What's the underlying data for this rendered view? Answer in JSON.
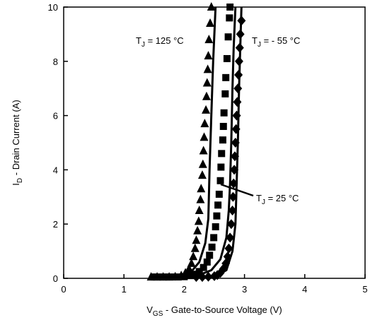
{
  "chart_data": {
    "type": "scatter",
    "title": "",
    "xlabel": {
      "main": "V",
      "sub": "GS",
      "rest": " - Gate-to-Source Voltage (V)"
    },
    "ylabel": {
      "main": "I",
      "sub": "D",
      "rest": " - Drain Current  (A)"
    },
    "xlim": [
      0,
      5
    ],
    "ylim": [
      0,
      10
    ],
    "xticks": [
      "0",
      "1",
      "2",
      "3",
      "4",
      "5"
    ],
    "yticks": [
      "0",
      "2",
      "4",
      "6",
      "8",
      "10"
    ],
    "grid": false,
    "series": [
      {
        "marker": "triangle",
        "annotation": {
          "main": "T",
          "sub": "J",
          "rest": " = 125 °C"
        },
        "points": [
          [
            1.45,
            0.05
          ],
          [
            1.55,
            0.05
          ],
          [
            1.65,
            0.05
          ],
          [
            1.75,
            0.05
          ],
          [
            1.85,
            0.06
          ],
          [
            1.95,
            0.1
          ],
          [
            2.02,
            0.2
          ],
          [
            2.08,
            0.35
          ],
          [
            2.12,
            0.55
          ],
          [
            2.15,
            0.8
          ],
          [
            2.18,
            1.1
          ],
          [
            2.2,
            1.4
          ],
          [
            2.22,
            1.75
          ],
          [
            2.24,
            2.1
          ],
          [
            2.25,
            2.5
          ],
          [
            2.27,
            2.9
          ],
          [
            2.28,
            3.3
          ],
          [
            2.3,
            3.8
          ],
          [
            2.31,
            4.2
          ],
          [
            2.32,
            4.7
          ],
          [
            2.33,
            5.2
          ],
          [
            2.34,
            5.7
          ],
          [
            2.36,
            6.2
          ],
          [
            2.37,
            6.7
          ],
          [
            2.38,
            7.2
          ],
          [
            2.39,
            7.7
          ],
          [
            2.4,
            8.2
          ],
          [
            2.41,
            8.8
          ],
          [
            2.43,
            9.4
          ],
          [
            2.45,
            10.0
          ]
        ],
        "fit": [
          [
            1.45,
            0.02
          ],
          [
            1.9,
            0.05
          ],
          [
            2.1,
            0.2
          ],
          [
            2.25,
            0.6
          ],
          [
            2.35,
            1.3
          ],
          [
            2.4,
            2.2
          ],
          [
            2.42,
            4.0
          ],
          [
            2.45,
            6.0
          ],
          [
            2.48,
            8.0
          ],
          [
            2.52,
            10.0
          ]
        ]
      },
      {
        "marker": "square",
        "annotation": {
          "main": "T",
          "sub": "J",
          "rest": " = 25 °C"
        },
        "points": [
          [
            1.5,
            0.05
          ],
          [
            1.6,
            0.05
          ],
          [
            1.7,
            0.05
          ],
          [
            1.8,
            0.05
          ],
          [
            1.9,
            0.05
          ],
          [
            2.0,
            0.06
          ],
          [
            2.1,
            0.1
          ],
          [
            2.18,
            0.15
          ],
          [
            2.25,
            0.25
          ],
          [
            2.32,
            0.4
          ],
          [
            2.38,
            0.6
          ],
          [
            2.42,
            0.85
          ],
          [
            2.46,
            1.15
          ],
          [
            2.49,
            1.5
          ],
          [
            2.52,
            1.9
          ],
          [
            2.54,
            2.3
          ],
          [
            2.56,
            2.7
          ],
          [
            2.58,
            3.1
          ],
          [
            2.6,
            3.6
          ],
          [
            2.61,
            4.1
          ],
          [
            2.62,
            4.6
          ],
          [
            2.64,
            5.1
          ],
          [
            2.65,
            5.6
          ],
          [
            2.66,
            6.1
          ],
          [
            2.68,
            6.8
          ],
          [
            2.69,
            7.4
          ],
          [
            2.71,
            8.1
          ],
          [
            2.73,
            8.9
          ],
          [
            2.75,
            9.6
          ],
          [
            2.76,
            10.0
          ]
        ],
        "fit": [
          [
            1.5,
            0.02
          ],
          [
            2.2,
            0.08
          ],
          [
            2.45,
            0.3
          ],
          [
            2.6,
            0.7
          ],
          [
            2.7,
            1.5
          ],
          [
            2.74,
            2.5
          ],
          [
            2.76,
            3.5
          ],
          [
            2.78,
            5.0
          ],
          [
            2.8,
            7.0
          ],
          [
            2.82,
            8.5
          ],
          [
            2.85,
            10.0
          ]
        ]
      },
      {
        "marker": "diamond",
        "annotation": {
          "main": "T",
          "sub": "J",
          "rest": " = - 55 °C"
        },
        "points": [
          [
            2.2,
            0.05
          ],
          [
            2.3,
            0.05
          ],
          [
            2.4,
            0.06
          ],
          [
            2.5,
            0.08
          ],
          [
            2.55,
            0.12
          ],
          [
            2.6,
            0.2
          ],
          [
            2.65,
            0.35
          ],
          [
            2.69,
            0.55
          ],
          [
            2.72,
            0.8
          ],
          [
            2.74,
            1.1
          ],
          [
            2.76,
            1.5
          ],
          [
            2.78,
            2.0
          ],
          [
            2.8,
            2.5
          ],
          [
            2.81,
            3.0
          ],
          [
            2.82,
            3.5
          ],
          [
            2.83,
            4.0
          ],
          [
            2.84,
            4.5
          ],
          [
            2.85,
            5.0
          ],
          [
            2.86,
            5.5
          ],
          [
            2.87,
            6.0
          ],
          [
            2.88,
            6.5
          ],
          [
            2.89,
            7.0
          ],
          [
            2.9,
            7.5
          ],
          [
            2.91,
            8.0
          ],
          [
            2.92,
            8.5
          ],
          [
            2.93,
            9.0
          ],
          [
            2.95,
            9.5
          ]
        ],
        "fit": [
          [
            2.0,
            0.02
          ],
          [
            2.5,
            0.05
          ],
          [
            2.7,
            0.3
          ],
          [
            2.8,
            1.0
          ],
          [
            2.85,
            2.0
          ],
          [
            2.87,
            3.5
          ],
          [
            2.89,
            5.0
          ],
          [
            2.91,
            7.0
          ],
          [
            2.93,
            8.5
          ],
          [
            2.95,
            10.0
          ]
        ]
      }
    ]
  }
}
